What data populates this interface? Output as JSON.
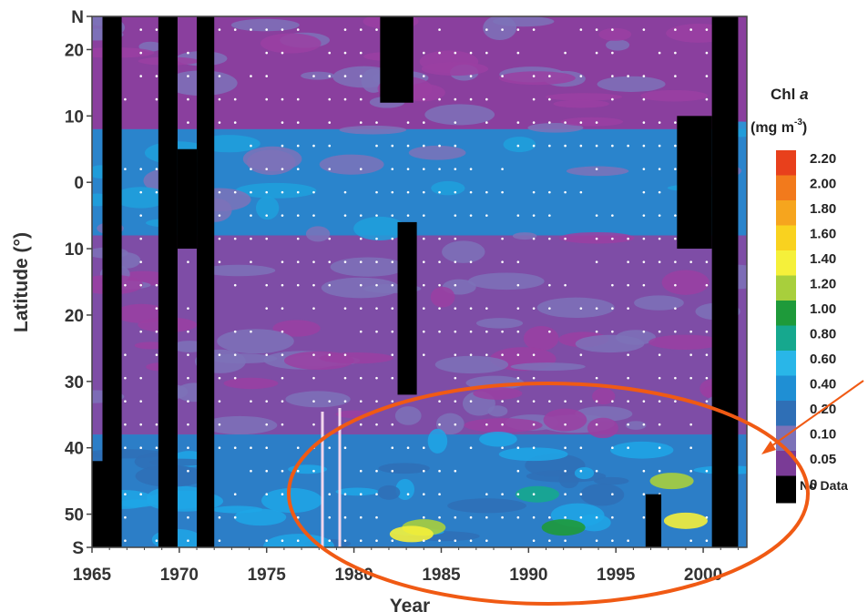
{
  "chart_data": {
    "type": "heatmap",
    "title": "",
    "xlabel": "Year",
    "ylabel": "Latitude (°)",
    "x_ticks": [
      "1965",
      "1970",
      "1975",
      "1980",
      "1985",
      "1990",
      "1995",
      "2000"
    ],
    "y_ticks": [
      "N",
      "20",
      "10",
      "0",
      "10",
      "20",
      "30",
      "40",
      "50",
      "S"
    ],
    "x_range": [
      1965,
      2002.5
    ],
    "y_range": [
      -55,
      25
    ],
    "colorbar": {
      "title": "Chl a",
      "title_plain": "Chl",
      "title_italic": "a",
      "unit": "(mg m",
      "unit_exp": "-3",
      "unit_close": ")",
      "levels": [
        "2.20",
        "2.00",
        "1.80",
        "1.60",
        "1.40",
        "1.20",
        "1.00",
        "0.80",
        "0.60",
        "0.40",
        "0.20",
        "0.10",
        "0.05",
        "0"
      ],
      "colors": [
        "#e8401c",
        "#f27a1c",
        "#f6a51e",
        "#f9d21f",
        "#f5f03a",
        "#a8cf3c",
        "#1e9a3a",
        "#16a88e",
        "#29b6e8",
        "#1f8fd4",
        "#2f6fb6",
        "#7c72b8",
        "#7a3b96",
        "#000000"
      ],
      "no_data_label": "No Data"
    },
    "no_data_bands": [
      {
        "year_start": 1965.6,
        "year_end": 1966.7,
        "lat_top": 25,
        "lat_bottom": -55
      },
      {
        "year_start": 1965,
        "year_end": 1965.6,
        "lat_top": -42,
        "lat_bottom": -55
      },
      {
        "year_start": 1968.8,
        "year_end": 1969.9,
        "lat_top": 25,
        "lat_bottom": -55
      },
      {
        "year_start": 1969.9,
        "year_end": 1971.0,
        "lat_top": 5,
        "lat_bottom": -10
      },
      {
        "year_start": 1971.0,
        "year_end": 1972.0,
        "lat_top": 25,
        "lat_bottom": -55
      },
      {
        "year_start": 1981.5,
        "year_end": 1983.4,
        "lat_top": 25,
        "lat_bottom": 12
      },
      {
        "year_start": 1982.5,
        "year_end": 1983.6,
        "lat_top": -6,
        "lat_bottom": -32
      },
      {
        "year_start": 1996.7,
        "year_end": 1997.6,
        "lat_top": -47,
        "lat_bottom": -55
      },
      {
        "year_start": 1998.5,
        "year_end": 2000.5,
        "lat_top": 10,
        "lat_bottom": -10
      },
      {
        "year_start": 2000.5,
        "year_end": 2002.0,
        "lat_top": 25,
        "lat_bottom": -55
      }
    ],
    "zones": [
      {
        "lat_top": 25,
        "lat_bottom": 8,
        "value": "0.05-0.10"
      },
      {
        "lat_top": 8,
        "lat_bottom": -8,
        "value": "0.20-0.40"
      },
      {
        "lat_top": -8,
        "lat_bottom": -38,
        "value": "0.05-0.20"
      },
      {
        "lat_top": -38,
        "lat_bottom": -55,
        "value": "0.20-0.80"
      }
    ],
    "annotation": {
      "shape": "ellipse",
      "color": "#f05a14",
      "arrow": true,
      "highlight": "1978-2002, 35-55°S"
    }
  }
}
